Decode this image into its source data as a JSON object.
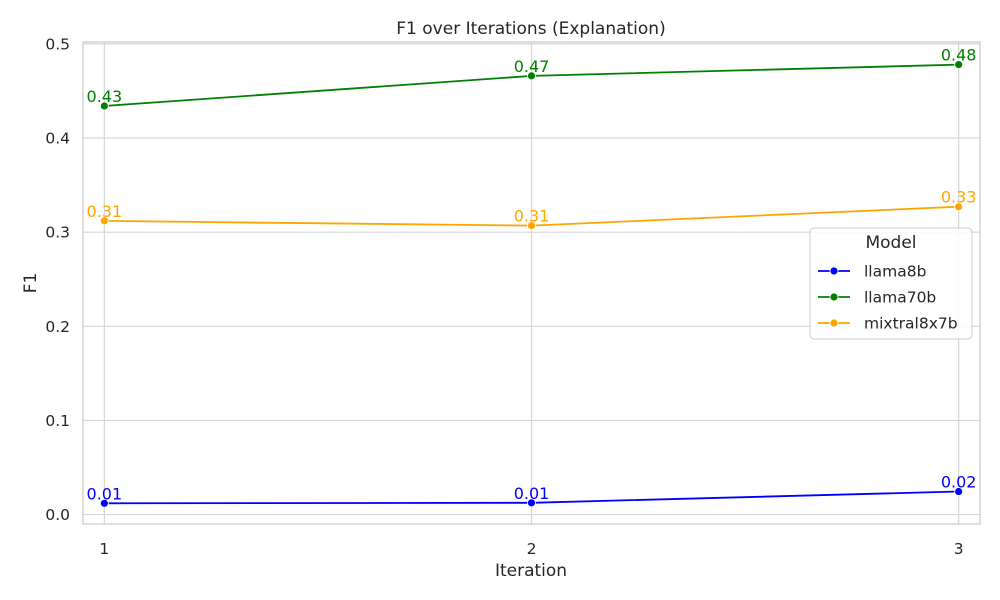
{
  "chart_data": {
    "type": "line",
    "title": "F1 over Iterations (Explanation)",
    "xlabel": "Iteration",
    "ylabel": "F1",
    "x": [
      1,
      2,
      3
    ],
    "xlim": [
      0.95,
      3.05
    ],
    "ylim": [
      -0.01,
      0.502
    ],
    "xticks": [
      1,
      2,
      3
    ],
    "yticks": [
      0.0,
      0.1,
      0.2,
      0.3,
      0.4,
      0.5
    ],
    "grid": true,
    "legend": {
      "title": "Model",
      "placement": "center-right"
    },
    "series": [
      {
        "name": "llama8b",
        "color": "#0000ff",
        "values": [
          0.012,
          0.0125,
          0.0245
        ],
        "labels": [
          "0.01",
          "0.01",
          "0.02"
        ]
      },
      {
        "name": "llama70b",
        "color": "#008000",
        "values": [
          0.434,
          0.466,
          0.478
        ],
        "labels": [
          "0.43",
          "0.47",
          "0.48"
        ]
      },
      {
        "name": "mixtral8x7b",
        "color": "#ffa500",
        "values": [
          0.312,
          0.307,
          0.327
        ],
        "labels": [
          "0.31",
          "0.31",
          "0.33"
        ]
      }
    ]
  }
}
